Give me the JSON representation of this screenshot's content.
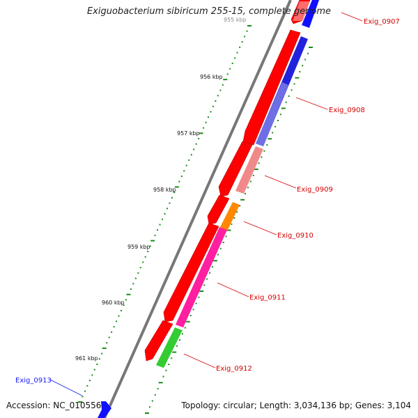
{
  "title": "Exiguobacterium sibiricum 255-15, complete genome",
  "accession": "Accession: NC_010556",
  "summary": "Topology: circular; Length: 3,034,136 bp; Genes: 3,104",
  "kbp_labels": [
    "955 kbp",
    "956 kbp",
    "957 kbp",
    "958 kbp",
    "959 kbp",
    "960 kbp",
    "961 kbp"
  ],
  "gene_labels": [
    {
      "name": "Exig_0907",
      "color": "#d40000"
    },
    {
      "name": "Exig_0908",
      "color": "#d40000"
    },
    {
      "name": "Exig_0909",
      "color": "#d40000"
    },
    {
      "name": "Exig_0910",
      "color": "#d40000"
    },
    {
      "name": "Exig_0911",
      "color": "#d40000"
    },
    {
      "name": "Exig_0912",
      "color": "#d40000"
    },
    {
      "name": "Exig_0913",
      "color": "#1a1aff"
    }
  ],
  "colors": {
    "cds": "#ff0000",
    "backbone": "#888888",
    "ticks": "#1a8a1a"
  }
}
